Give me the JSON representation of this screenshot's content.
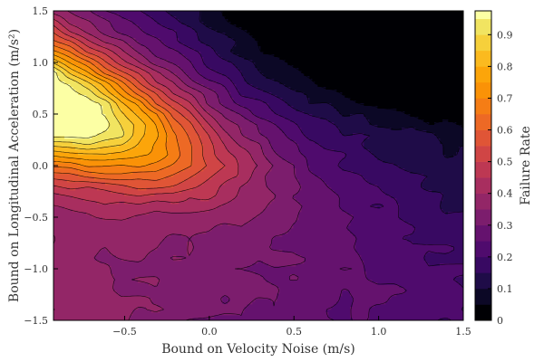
{
  "chart_data": {
    "type": "heatmap",
    "subtype": "filled-contour",
    "title": "",
    "xlabel": "Bound on Velocity Noise (m/s)",
    "ylabel": "Bound on Longitudinal Acceleration (m/s²)",
    "colorbar_label": "Failure Rate",
    "xlim": [
      -0.92,
      1.5
    ],
    "ylim": [
      -1.5,
      1.5
    ],
    "x_ticks": [
      -0.5,
      0.0,
      0.5,
      1.0,
      1.5
    ],
    "x_tick_labels": [
      "−0.5",
      "0.0",
      "0.5",
      "1.0",
      "1.5"
    ],
    "y_ticks": [
      -1.5,
      -1.0,
      -0.5,
      0.0,
      0.5,
      1.0,
      1.5
    ],
    "y_tick_labels": [
      "−1.5",
      "−1.0",
      "−0.5",
      "0.0",
      "0.5",
      "1.0",
      "1.5"
    ],
    "colorbar_range": [
      0,
      0.975
    ],
    "colorbar_ticks": [
      0,
      0.1,
      0.2,
      0.3,
      0.4,
      0.5,
      0.6,
      0.7,
      0.8,
      0.9
    ],
    "colorbar_tick_labels": [
      "0",
      "0.1",
      "0.2",
      "0.3",
      "0.4",
      "0.5",
      "0.6",
      "0.7",
      "0.8",
      "0.9"
    ],
    "levels": [
      0,
      0.05,
      0.1,
      0.15,
      0.2,
      0.25,
      0.3,
      0.35,
      0.4,
      0.45,
      0.5,
      0.55,
      0.6,
      0.65,
      0.7,
      0.75,
      0.8,
      0.85,
      0.9,
      0.95,
      0.975
    ],
    "colormap": "inferno",
    "level_colors": [
      "#000004",
      "#0c0826",
      "#1f0c48",
      "#380962",
      "#4f0b6d",
      "#65126e",
      "#7c1d6d",
      "#932667",
      "#a82e5f",
      "#bd3853",
      "#d04545",
      "#e05536",
      "#ed6925",
      "#f57d15",
      "#fa9207",
      "#fca50a",
      "#fbba1f",
      "#f6d03b",
      "#f1e461",
      "#fcffa4"
    ],
    "grid": false,
    "legend": "colorbar-right",
    "data_model": {
      "description_omitted": true,
      "peak": {
        "x": -0.92,
        "y": 0.6,
        "value": 0.96
      }
    }
  }
}
